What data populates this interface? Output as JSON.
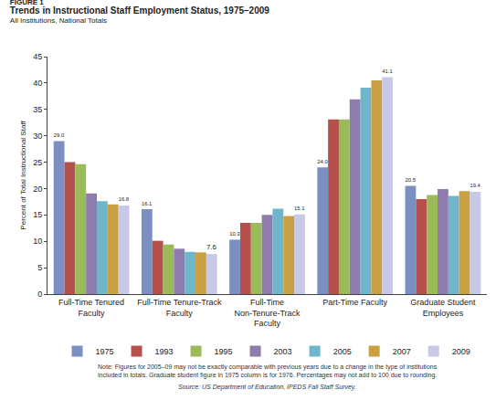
{
  "chart_data": {
    "type": "bar",
    "label": "FIGURE 1",
    "title": "Trends in Instructional Staff Employment Status, 1975–2009",
    "subtitle": "All Institutions, National Totals",
    "y_label": "Percent of Total Instructional Staff",
    "categories": [
      "Full-Time Tenured Faculty",
      "Full-Time Tenure-Track Faculty",
      "Full-Time Non-Tenure-Track Faculty",
      "Part-Time Faculty",
      "Graduate Student Employees"
    ],
    "series": [
      {
        "name": "1975",
        "color": "#7b8fc0",
        "values": [
          29.0,
          16.1,
          10.3,
          24.0,
          20.5
        ],
        "value_labels": [
          "29.0",
          "16.1",
          "10.3",
          "24.0",
          "20.5"
        ]
      },
      {
        "name": "1993",
        "color": "#b5504d",
        "values": [
          25.0,
          10.1,
          13.5,
          33.1,
          18.0
        ]
      },
      {
        "name": "1995",
        "color": "#9bbb59",
        "values": [
          24.6,
          9.4,
          13.5,
          33.1,
          18.8
        ]
      },
      {
        "name": "2003",
        "color": "#8e7cac",
        "values": [
          19.1,
          8.6,
          15.0,
          36.9,
          19.9
        ]
      },
      {
        "name": "2005",
        "color": "#6fb6cc",
        "values": [
          17.6,
          8.0,
          16.2,
          39.1,
          18.6
        ]
      },
      {
        "name": "2007",
        "color": "#c9a042",
        "values": [
          17.0,
          7.9,
          14.8,
          40.5,
          19.5
        ]
      },
      {
        "name": "2009",
        "color": "#c7c9e6",
        "values": [
          16.8,
          7.6,
          15.1,
          41.1,
          19.4
        ],
        "value_labels": [
          "16.8",
          "7.6",
          "15.1",
          "41.1",
          "19.4"
        ]
      }
    ],
    "ylim": [
      0,
      45
    ],
    "yticks": [
      0,
      5,
      10,
      15,
      20,
      25,
      30,
      35,
      40,
      45
    ],
    "grid": false,
    "legend": "bottom",
    "annotations": [
      "Note: Figures for 2005–09 may not be exactly comparable with previous years due to a change in the type of institutions included in totals. Graduate student figure in 1975 column is for 1976. Percentages may not add to 100 due to rounding.",
      "Source: US Department of Education, IPEDS Fall Staff Survey."
    ]
  }
}
